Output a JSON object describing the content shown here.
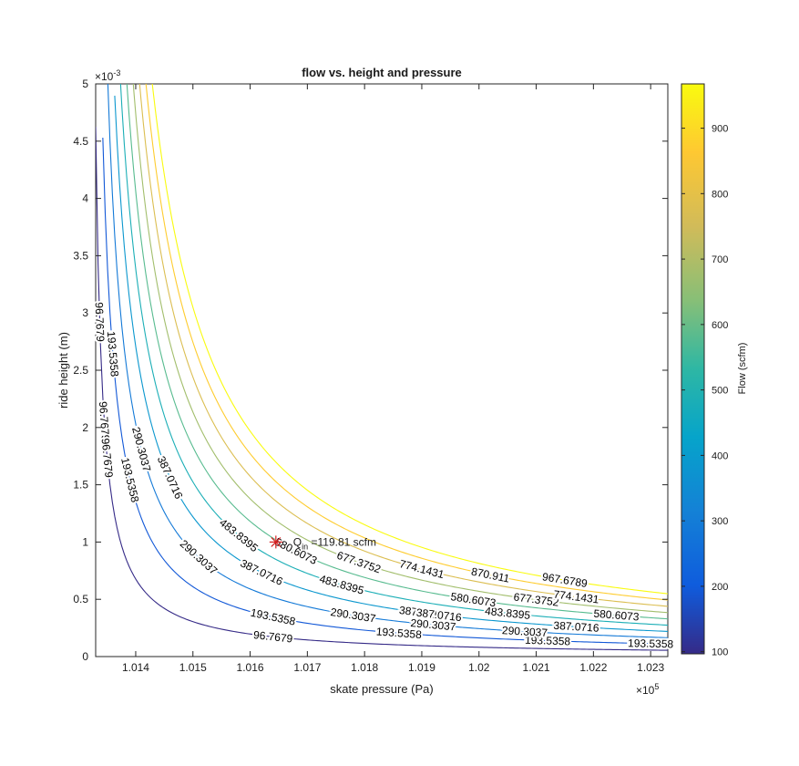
{
  "chart_data": {
    "type": "contour",
    "title": "flow vs. height and pressure",
    "xlabel": "skate pressure (Pa)",
    "ylabel": "ride height (m)",
    "x_exponent_label": "×10",
    "x_exponent": "5",
    "y_exponent_label": "×10",
    "y_exponent": "-3",
    "xlim": [
      101330,
      102330
    ],
    "ylim": [
      0,
      0.005
    ],
    "x_ticks": [
      101400,
      101500,
      101600,
      101700,
      101800,
      101900,
      102000,
      102100,
      102200,
      102300
    ],
    "x_tick_labels": [
      "1.014",
      "1.015",
      "1.016",
      "1.017",
      "1.018",
      "1.019",
      "1.02",
      "1.021",
      "1.022",
      "1.023"
    ],
    "y_ticks": [
      0,
      0.0005,
      0.001,
      0.0015,
      0.002,
      0.0025,
      0.003,
      0.0035,
      0.004,
      0.0045,
      0.005
    ],
    "y_tick_labels": [
      "0",
      "0.5",
      "1",
      "1.5",
      "2",
      "2.5",
      "3",
      "3.5",
      "4",
      "4.5",
      "5"
    ],
    "levels": [
      96.7679,
      193.5358,
      290.3037,
      387.0716,
      483.8395,
      580.6073,
      677.3752,
      774.1431,
      870.911,
      967.6789
    ],
    "level_labels": [
      "96.7679",
      "193.5358",
      "290.3037",
      "387.0716",
      "483.8395",
      "580.6073",
      "677.3752",
      "774.1431",
      "870.911",
      "967.6789"
    ],
    "contour_label_positions": [
      [
        [
          101337,
          0.0045
        ],
        [
          101345,
          0.0033
        ],
        [
          101350,
          0.00185
        ],
        [
          101640,
          0.00086
        ]
      ],
      [
        [
          101360,
          0.0046
        ],
        [
          101390,
          0.0033
        ],
        [
          101640,
          0.00193
        ],
        [
          101860,
          0.00131
        ],
        [
          102120,
          0.001
        ],
        [
          102300,
          0.00066
        ]
      ],
      [
        [
          101410,
          0.0046
        ],
        [
          101510,
          0.00316
        ],
        [
          101920,
          0.00179
        ],
        [
          102080,
          0.00155
        ],
        [
          101780,
          0.00067
        ]
      ],
      [
        [
          101460,
          0.0047
        ],
        [
          101620,
          0.00325
        ],
        [
          101900,
          0.00248
        ],
        [
          102170,
          0.00201
        ],
        [
          101930,
          0.00059
        ]
      ],
      [
        [
          101580,
          0.0046
        ],
        [
          101760,
          0.00335
        ],
        [
          102050,
          0.00274
        ],
        [
          102400,
          0.0
        ]
      ],
      [
        [
          101680,
          0.00475
        ],
        [
          101990,
          0.0037
        ],
        [
          102240,
          0.00303
        ]
      ],
      [
        [
          101790,
          0.0046
        ],
        [
          102100,
          0.00376
        ]
      ],
      [
        [
          101900,
          0.00478
        ],
        [
          102170,
          0.0039
        ]
      ],
      [
        [
          102020,
          0.00474
        ]
      ],
      [
        [
          102150,
          0.00485
        ]
      ]
    ],
    "colorbar": {
      "label": "Flow (scfm)",
      "ticks": [
        100,
        200,
        300,
        400,
        500,
        600,
        700,
        800,
        900
      ],
      "range": [
        96.7679,
        967.6789
      ]
    },
    "marker": {
      "x": 101645,
      "y": 0.001,
      "label_main": "Q",
      "label_sub": "in",
      "label_rest": " =119.81 scfm",
      "color": "#d62020"
    }
  }
}
